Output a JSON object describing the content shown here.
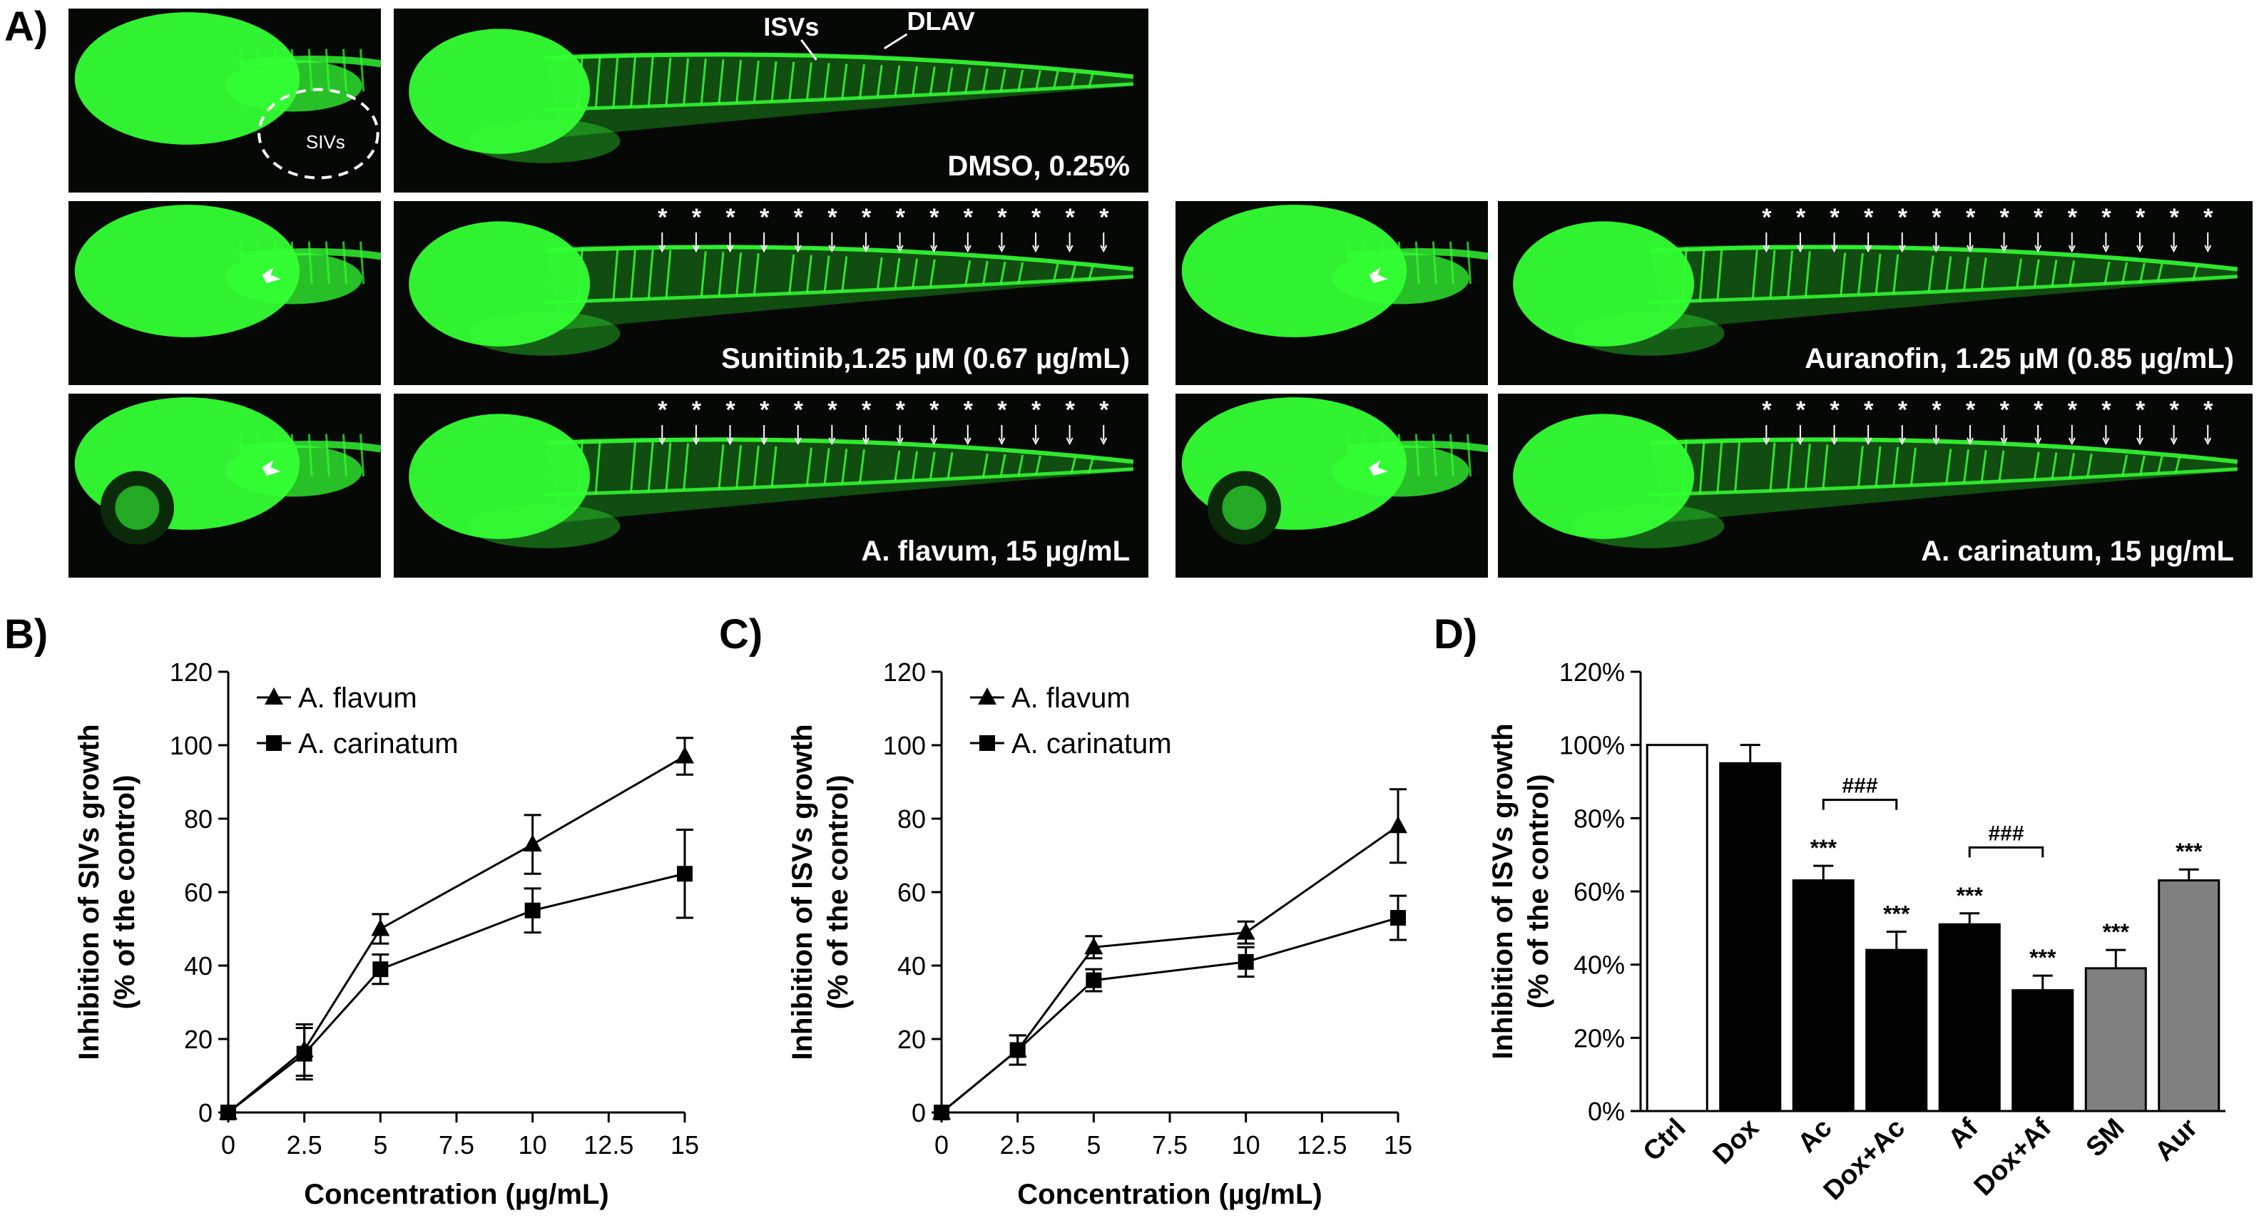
{
  "panels": {
    "A": "A)",
    "B": "B)",
    "C": "C)",
    "D": "D)"
  },
  "micrographs": {
    "dmso": {
      "caption": "DMSO, 0.25%",
      "sivs_label": "SIVs",
      "isvs_label": "ISVs",
      "dlav_label": "DLAV"
    },
    "sunitinib": {
      "caption": "Sunitinib,1.25 µM (0.67 µg/mL)"
    },
    "auranofin": {
      "caption": "Auranofin, 1.25 µM (0.85 µg/mL)"
    },
    "aflavum": {
      "caption": "A. flavum, 15 µg/mL"
    },
    "acarinatum": {
      "caption": "A. carinatum, 15 µg/mL"
    },
    "colors": {
      "background": "#050805",
      "fluorescence": "#33ff33",
      "annotation": "#ffffff"
    }
  },
  "chart_data": [
    {
      "type": "line",
      "id": "B",
      "x": [
        0,
        2.5,
        5,
        10,
        15
      ],
      "series": [
        {
          "name": "A. flavum",
          "marker": "triangle",
          "values": [
            0,
            17,
            50,
            73,
            97
          ],
          "errors": [
            0,
            7,
            4,
            8,
            5
          ]
        },
        {
          "name": "A. carinatum",
          "marker": "square",
          "values": [
            0,
            16,
            39,
            55,
            65
          ],
          "errors": [
            0,
            7,
            4,
            6,
            12
          ]
        }
      ],
      "xlabel": "Concentration (µg/mL)",
      "ylabel_line1": "Inhibition of SIVs growth",
      "ylabel_line2": "(% of the control)",
      "xlim": [
        0,
        15
      ],
      "ylim": [
        0,
        120
      ],
      "xticks": [
        0,
        2.5,
        5,
        7.5,
        10,
        12.5,
        15
      ],
      "xtick_labels": [
        "0",
        "2.5",
        "5",
        "7.5",
        "10",
        "12.5",
        "15"
      ],
      "yticks": [
        0,
        20,
        40,
        60,
        80,
        100,
        120
      ],
      "ytick_labels": [
        "0",
        "20",
        "40",
        "60",
        "80",
        "100",
        "120"
      ],
      "grid": false,
      "legend_position": "top-left"
    },
    {
      "type": "line",
      "id": "C",
      "x": [
        0,
        2.5,
        5,
        10,
        15
      ],
      "series": [
        {
          "name": "A. flavum",
          "marker": "triangle",
          "values": [
            0,
            17,
            45,
            49,
            78
          ],
          "errors": [
            0,
            4,
            3,
            3,
            10
          ]
        },
        {
          "name": "A. carinatum",
          "marker": "square",
          "values": [
            0,
            17,
            36,
            41,
            53
          ],
          "errors": [
            0,
            4,
            3,
            4,
            6
          ]
        }
      ],
      "xlabel": "Concentration (µg/mL)",
      "ylabel_line1": "Inhibition of ISVs growth",
      "ylabel_line2": "(% of the control)",
      "xlim": [
        0,
        15
      ],
      "ylim": [
        0,
        120
      ],
      "xticks": [
        0,
        2.5,
        5,
        7.5,
        10,
        12.5,
        15
      ],
      "xtick_labels": [
        "0",
        "2.5",
        "5",
        "7.5",
        "10",
        "12.5",
        "15"
      ],
      "yticks": [
        0,
        20,
        40,
        60,
        80,
        100,
        120
      ],
      "ytick_labels": [
        "0",
        "20",
        "40",
        "60",
        "80",
        "100",
        "120"
      ],
      "grid": false,
      "legend_position": "top-left"
    },
    {
      "type": "bar",
      "id": "D",
      "categories": [
        "Ctrl",
        "Dox",
        "Ac",
        "Dox+Ac",
        "Af",
        "Dox+Af",
        "SM",
        "Aur"
      ],
      "values": [
        100,
        95,
        63,
        44,
        51,
        33,
        39,
        63
      ],
      "errors": [
        0,
        5,
        4,
        5,
        3,
        4,
        5,
        3
      ],
      "bar_colors": [
        "#ffffff",
        "#000000",
        "#000000",
        "#000000",
        "#000000",
        "#000000",
        "#808080",
        "#808080"
      ],
      "significance": [
        "",
        "",
        "***",
        "***",
        "***",
        "***",
        "***",
        "***"
      ],
      "brackets": [
        {
          "from": "Ac",
          "to": "Dox+Ac",
          "label": "###"
        },
        {
          "from": "Af",
          "to": "Dox+Af",
          "label": "###"
        }
      ],
      "ylabel_line1": "Inhibition of ISVs growth",
      "ylabel_line2": "(% of the control)",
      "ylim": [
        0,
        120
      ],
      "yticks": [
        0,
        20,
        40,
        60,
        80,
        100,
        120
      ],
      "ytick_labels": [
        "0%",
        "20%",
        "40%",
        "60%",
        "80%",
        "100%",
        "120%"
      ],
      "grid": false
    }
  ]
}
